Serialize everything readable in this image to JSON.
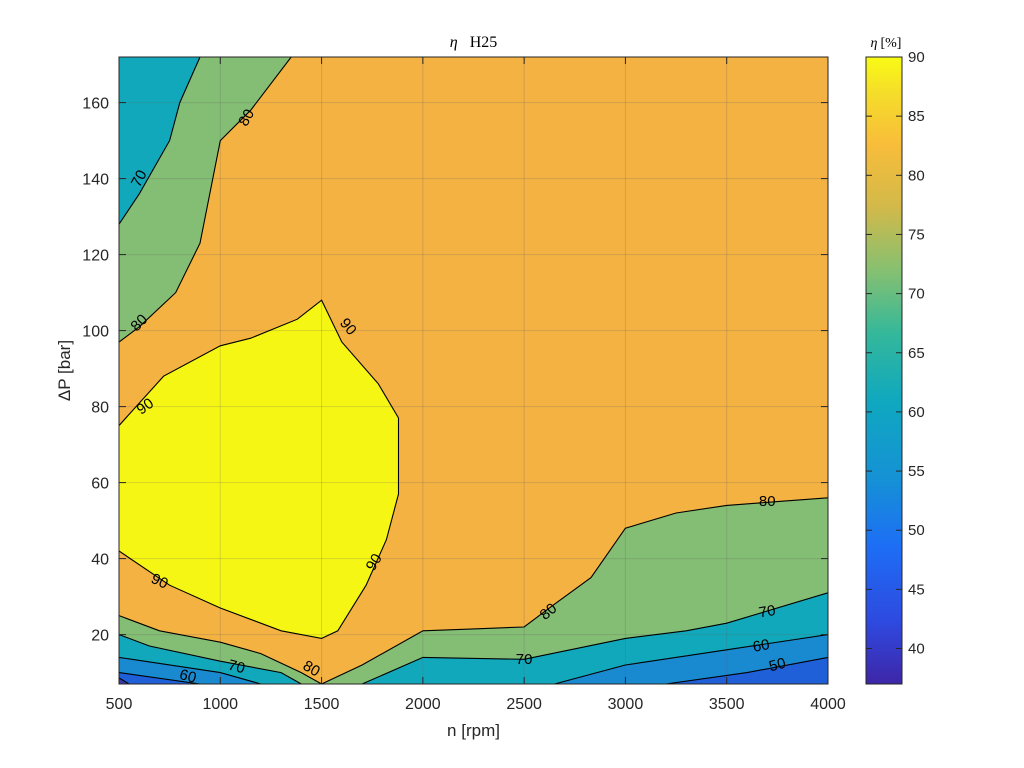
{
  "chart_data": {
    "type": "contour",
    "title": "η   H25",
    "title_symbol": "η",
    "title_name": "H25",
    "xlabel": "n [rpm]",
    "ylabel": "ΔP [bar]",
    "xlim": [
      500,
      4000
    ],
    "ylim": [
      7,
      172
    ],
    "xticks": [
      500,
      1000,
      1500,
      2000,
      2500,
      3000,
      3500,
      4000
    ],
    "yticks": [
      20,
      40,
      60,
      80,
      100,
      120,
      140,
      160
    ],
    "grid": true,
    "colorbar": {
      "title": "η [%]",
      "title_symbol": "η",
      "title_unit": "[%]",
      "range": [
        37,
        90
      ],
      "ticks": [
        40,
        45,
        50,
        55,
        60,
        65,
        70,
        75,
        80,
        85,
        90
      ],
      "colormap": "parula"
    },
    "contour_levels": [
      40,
      50,
      60,
      70,
      80,
      90
    ],
    "level_colors": {
      "below_40": "#3a3aa3",
      "40_50": "#1f5fd8",
      "50_60": "#1a8ad0",
      "60_70": "#12a8bc",
      "70_80": "#84bd74",
      "80_90": "#f4b243",
      "above_90": "#f6f614"
    },
    "contours": [
      {
        "level": 90,
        "points": [
          [
            500,
            75
          ],
          [
            720,
            88
          ],
          [
            1000,
            96
          ],
          [
            1150,
            98
          ],
          [
            1380,
            103
          ],
          [
            1500,
            108
          ],
          [
            1600,
            97
          ],
          [
            1780,
            86
          ],
          [
            1880,
            77
          ],
          [
            1880,
            57
          ],
          [
            1820,
            45
          ],
          [
            1720,
            33
          ],
          [
            1580,
            21
          ],
          [
            1500,
            19
          ],
          [
            1300,
            21
          ],
          [
            1000,
            27
          ],
          [
            750,
            33
          ],
          [
            500,
            42
          ]
        ]
      },
      {
        "level": 80,
        "points": [
          [
            500,
            97
          ],
          [
            600,
            101
          ],
          [
            780,
            110
          ],
          [
            900,
            123
          ],
          [
            1000,
            150
          ],
          [
            1150,
            158
          ],
          [
            1350,
            172
          ]
        ]
      },
      {
        "level": 70,
        "points": [
          [
            500,
            128
          ],
          [
            600,
            136
          ],
          [
            750,
            150
          ],
          [
            800,
            160
          ],
          [
            900,
            172
          ]
        ]
      },
      {
        "level": 80,
        "points": [
          [
            500,
            25
          ],
          [
            700,
            21
          ],
          [
            1000,
            18
          ],
          [
            1200,
            15
          ],
          [
            1400,
            10
          ],
          [
            1500,
            7
          ]
        ]
      },
      {
        "level": 80,
        "points": [
          [
            1500,
            7
          ],
          [
            1700,
            12
          ],
          [
            2000,
            21
          ],
          [
            2250,
            21.5
          ],
          [
            2500,
            22
          ],
          [
            2650,
            28
          ],
          [
            2830,
            35
          ],
          [
            3000,
            48
          ],
          [
            3250,
            52
          ],
          [
            3500,
            54
          ],
          [
            3750,
            55
          ],
          [
            4000,
            56
          ]
        ]
      },
      {
        "level": 70,
        "points": [
          [
            500,
            20
          ],
          [
            650,
            17
          ],
          [
            1000,
            13
          ],
          [
            1300,
            10
          ],
          [
            1400,
            7
          ]
        ]
      },
      {
        "level": 70,
        "points": [
          [
            1700,
            7
          ],
          [
            2000,
            14
          ],
          [
            2500,
            13.5
          ],
          [
            3000,
            19
          ],
          [
            3300,
            21
          ],
          [
            3500,
            23
          ],
          [
            4000,
            31
          ]
        ]
      },
      {
        "level": 60,
        "points": [
          [
            500,
            14
          ],
          [
            1000,
            10
          ],
          [
            1200,
            7
          ]
        ]
      },
      {
        "level": 60,
        "points": [
          [
            2650,
            7
          ],
          [
            3000,
            12
          ],
          [
            3500,
            16
          ],
          [
            4000,
            20
          ]
        ]
      },
      {
        "level": 50,
        "points": [
          [
            500,
            10
          ],
          [
            900,
            7
          ]
        ]
      },
      {
        "level": 50,
        "points": [
          [
            3200,
            7
          ],
          [
            3600,
            10
          ],
          [
            4000,
            14
          ]
        ]
      },
      {
        "level": 40,
        "points": [
          [
            500,
            8.6
          ],
          [
            550,
            7
          ]
        ]
      }
    ],
    "regions": [
      {
        "fill_level": "70_80",
        "points": [
          [
            500,
            97
          ],
          [
            600,
            101
          ],
          [
            780,
            110
          ],
          [
            900,
            123
          ],
          [
            1000,
            150
          ],
          [
            1150,
            158
          ],
          [
            1350,
            172
          ],
          [
            900,
            172
          ],
          [
            800,
            160
          ],
          [
            750,
            150
          ],
          [
            600,
            136
          ],
          [
            500,
            128
          ]
        ]
      },
      {
        "fill_level": "60_70",
        "points": [
          [
            500,
            128
          ],
          [
            600,
            136
          ],
          [
            750,
            150
          ],
          [
            800,
            160
          ],
          [
            900,
            172
          ],
          [
            500,
            172
          ]
        ]
      },
      {
        "fill_level": "above_90",
        "points": [
          [
            500,
            75
          ],
          [
            720,
            88
          ],
          [
            1000,
            96
          ],
          [
            1150,
            98
          ],
          [
            1380,
            103
          ],
          [
            1500,
            108
          ],
          [
            1600,
            97
          ],
          [
            1780,
            86
          ],
          [
            1880,
            77
          ],
          [
            1880,
            57
          ],
          [
            1820,
            45
          ],
          [
            1720,
            33
          ],
          [
            1580,
            21
          ],
          [
            1500,
            19
          ],
          [
            1300,
            21
          ],
          [
            1000,
            27
          ],
          [
            750,
            33
          ],
          [
            500,
            42
          ]
        ]
      },
      {
        "fill_level": "70_80",
        "points": [
          [
            500,
            25
          ],
          [
            700,
            21
          ],
          [
            1000,
            18
          ],
          [
            1200,
            15
          ],
          [
            1400,
            10
          ],
          [
            1500,
            7
          ],
          [
            1400,
            7
          ],
          [
            1300,
            10
          ],
          [
            1000,
            13
          ],
          [
            650,
            17
          ],
          [
            500,
            20
          ]
        ]
      },
      {
        "fill_level": "70_80",
        "points": [
          [
            1500,
            7
          ],
          [
            1700,
            12
          ],
          [
            2000,
            21
          ],
          [
            2250,
            21.5
          ],
          [
            2500,
            22
          ],
          [
            2650,
            28
          ],
          [
            2830,
            35
          ],
          [
            3000,
            48
          ],
          [
            3250,
            52
          ],
          [
            3500,
            54
          ],
          [
            3750,
            55
          ],
          [
            4000,
            56
          ],
          [
            4000,
            31
          ],
          [
            3500,
            23
          ],
          [
            3300,
            21
          ],
          [
            3000,
            19
          ],
          [
            2500,
            13.5
          ],
          [
            2000,
            14
          ],
          [
            1700,
            7
          ]
        ]
      },
      {
        "fill_level": "60_70",
        "points": [
          [
            500,
            20
          ],
          [
            650,
            17
          ],
          [
            1000,
            13
          ],
          [
            1300,
            10
          ],
          [
            1400,
            7
          ],
          [
            1200,
            7
          ],
          [
            1000,
            10
          ],
          [
            500,
            14
          ]
        ]
      },
      {
        "fill_level": "60_70",
        "points": [
          [
            1700,
            7
          ],
          [
            2000,
            14
          ],
          [
            2500,
            13.5
          ],
          [
            3000,
            19
          ],
          [
            3300,
            21
          ],
          [
            3500,
            23
          ],
          [
            4000,
            31
          ],
          [
            4000,
            20
          ],
          [
            3500,
            16
          ],
          [
            3000,
            12
          ],
          [
            2650,
            7
          ]
        ]
      },
      {
        "fill_level": "50_60",
        "points": [
          [
            500,
            14
          ],
          [
            1000,
            10
          ],
          [
            1200,
            7
          ],
          [
            900,
            7
          ],
          [
            500,
            10
          ]
        ]
      },
      {
        "fill_level": "50_60",
        "points": [
          [
            2650,
            7
          ],
          [
            3000,
            12
          ],
          [
            3500,
            16
          ],
          [
            4000,
            20
          ],
          [
            4000,
            14
          ],
          [
            3600,
            10
          ],
          [
            3200,
            7
          ]
        ]
      },
      {
        "fill_level": "40_50",
        "points": [
          [
            500,
            10
          ],
          [
            900,
            7
          ],
          [
            550,
            7
          ],
          [
            500,
            8.6
          ]
        ]
      },
      {
        "fill_level": "40_50",
        "points": [
          [
            3200,
            7
          ],
          [
            3600,
            10
          ],
          [
            4000,
            14
          ],
          [
            4000,
            7
          ]
        ]
      },
      {
        "fill_level": "below_40",
        "points": [
          [
            500,
            8.6
          ],
          [
            550,
            7
          ],
          [
            500,
            7
          ]
        ]
      }
    ],
    "contour_labels": [
      {
        "text": "80",
        "x": 1130,
        "y": 156,
        "angle": -60
      },
      {
        "text": "70",
        "x": 600,
        "y": 140,
        "angle": -62
      },
      {
        "text": "80",
        "x": 600,
        "y": 102,
        "angle": -45
      },
      {
        "text": "90",
        "x": 1630,
        "y": 101,
        "angle": 50
      },
      {
        "text": "90",
        "x": 630,
        "y": 80,
        "angle": -35
      },
      {
        "text": "90",
        "x": 700,
        "y": 34,
        "angle": 25
      },
      {
        "text": "90",
        "x": 1760,
        "y": 39,
        "angle": -58
      },
      {
        "text": "80",
        "x": 2620,
        "y": 26,
        "angle": -40
      },
      {
        "text": "80",
        "x": 3700,
        "y": 55,
        "angle": 0
      },
      {
        "text": "80",
        "x": 1450,
        "y": 11,
        "angle": 30
      },
      {
        "text": "70",
        "x": 2500,
        "y": 13.5,
        "angle": 0
      },
      {
        "text": "70",
        "x": 3700,
        "y": 26,
        "angle": -10
      },
      {
        "text": "70",
        "x": 1080,
        "y": 11.5,
        "angle": 15
      },
      {
        "text": "60",
        "x": 3670,
        "y": 17,
        "angle": -10
      },
      {
        "text": "60",
        "x": 840,
        "y": 9,
        "angle": 15
      },
      {
        "text": "50",
        "x": 3750,
        "y": 12,
        "angle": -15
      }
    ]
  }
}
